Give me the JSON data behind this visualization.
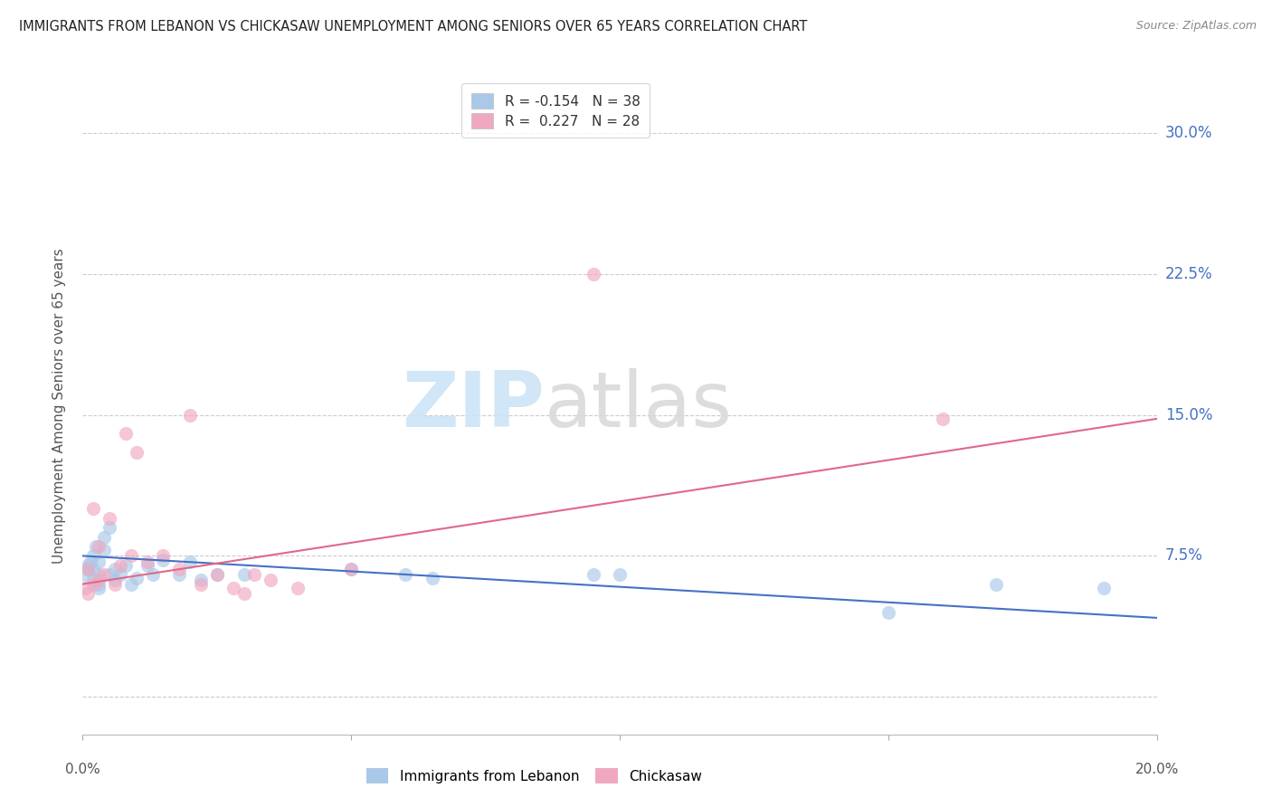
{
  "title": "IMMIGRANTS FROM LEBANON VS CHICKASAW UNEMPLOYMENT AMONG SENIORS OVER 65 YEARS CORRELATION CHART",
  "source": "Source: ZipAtlas.com",
  "ylabel": "Unemployment Among Seniors over 65 years",
  "xlim": [
    0.0,
    0.2
  ],
  "ylim": [
    -0.02,
    0.33
  ],
  "yticks": [
    0.0,
    0.075,
    0.15,
    0.225,
    0.3
  ],
  "ytick_labels": [
    "",
    "7.5%",
    "15.0%",
    "22.5%",
    "30.0%"
  ],
  "xtick_positions": [
    0.0,
    0.05,
    0.1,
    0.15,
    0.2
  ],
  "legend1_label": "R = -0.154   N = 38",
  "legend2_label": "R =  0.227   N = 28",
  "legend_series1": "Immigrants from Lebanon",
  "legend_series2": "Chickasaw",
  "blue_color": "#aac8e8",
  "pink_color": "#f0a8c0",
  "blue_line_color": "#4472c4",
  "pink_line_color": "#e06888",
  "scatter_alpha": 0.65,
  "scatter_size": 120,
  "blue_scatter_x": [
    0.0005,
    0.001,
    0.001,
    0.0015,
    0.002,
    0.002,
    0.002,
    0.0025,
    0.003,
    0.003,
    0.003,
    0.003,
    0.004,
    0.004,
    0.005,
    0.005,
    0.006,
    0.006,
    0.007,
    0.008,
    0.009,
    0.01,
    0.012,
    0.013,
    0.015,
    0.018,
    0.02,
    0.022,
    0.025,
    0.03,
    0.05,
    0.06,
    0.065,
    0.095,
    0.1,
    0.15,
    0.17,
    0.19
  ],
  "blue_scatter_y": [
    0.065,
    0.07,
    0.068,
    0.072,
    0.075,
    0.068,
    0.062,
    0.08,
    0.065,
    0.072,
    0.06,
    0.058,
    0.085,
    0.078,
    0.09,
    0.065,
    0.068,
    0.062,
    0.065,
    0.07,
    0.06,
    0.063,
    0.07,
    0.065,
    0.073,
    0.065,
    0.072,
    0.062,
    0.065,
    0.065,
    0.068,
    0.065,
    0.063,
    0.065,
    0.065,
    0.045,
    0.06,
    0.058
  ],
  "pink_scatter_x": [
    0.0005,
    0.001,
    0.001,
    0.002,
    0.002,
    0.003,
    0.003,
    0.004,
    0.005,
    0.006,
    0.007,
    0.008,
    0.009,
    0.01,
    0.012,
    0.015,
    0.018,
    0.02,
    0.022,
    0.025,
    0.028,
    0.03,
    0.032,
    0.035,
    0.04,
    0.05,
    0.095,
    0.16
  ],
  "pink_scatter_y": [
    0.058,
    0.055,
    0.068,
    0.06,
    0.1,
    0.062,
    0.08,
    0.065,
    0.095,
    0.06,
    0.07,
    0.14,
    0.075,
    0.13,
    0.072,
    0.075,
    0.068,
    0.15,
    0.06,
    0.065,
    0.058,
    0.055,
    0.065,
    0.062,
    0.058,
    0.068,
    0.225,
    0.148
  ],
  "blue_line_x": [
    0.0,
    0.2
  ],
  "blue_line_y": [
    0.075,
    0.042
  ],
  "pink_line_x": [
    0.0,
    0.2
  ],
  "pink_line_y": [
    0.06,
    0.148
  ],
  "grid_color": "#cccccc",
  "bg_color": "#ffffff",
  "title_color": "#222222",
  "right_tick_color": "#4472c4",
  "source_color": "#888888"
}
